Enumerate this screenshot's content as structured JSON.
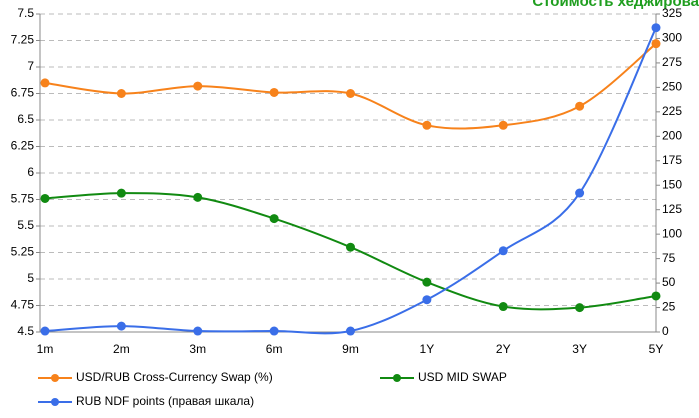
{
  "chart_data": {
    "type": "line",
    "title": "Стоимость хеджирова",
    "categories": [
      "1m",
      "2m",
      "3m",
      "6m",
      "9m",
      "1Y",
      "2Y",
      "3Y",
      "5Y"
    ],
    "series": [
      {
        "name": "USD/RUB Cross-Currency Swap (%)",
        "color": "#f7821b",
        "values": [
          6.85,
          6.75,
          6.82,
          6.76,
          6.75,
          6.45,
          6.45,
          6.63,
          7.22
        ]
      },
      {
        "name": "USD MID SWAP",
        "color": "#118a11",
        "values": [
          5.76,
          5.81,
          5.77,
          5.57,
          5.3,
          4.97,
          4.74,
          4.73,
          4.84
        ]
      },
      {
        "name": "RUB NDF points (правая шкала)",
        "color": "#3a6ee8",
        "axis": "y2",
        "values": [
          1,
          6,
          1,
          1,
          1,
          33,
          83,
          142,
          311
        ]
      }
    ],
    "ylim": [
      4.5,
      7.5
    ],
    "yticks": [
      4.5,
      4.75,
      5,
      5.25,
      5.5,
      5.75,
      6,
      6.25,
      6.5,
      6.75,
      7,
      7.25,
      7.5
    ],
    "y2lim": [
      0,
      325
    ],
    "y2ticks": [
      0,
      25,
      50,
      75,
      100,
      125,
      150,
      175,
      200,
      225,
      250,
      275,
      300,
      325
    ],
    "grid": true,
    "legend": "bottom"
  }
}
